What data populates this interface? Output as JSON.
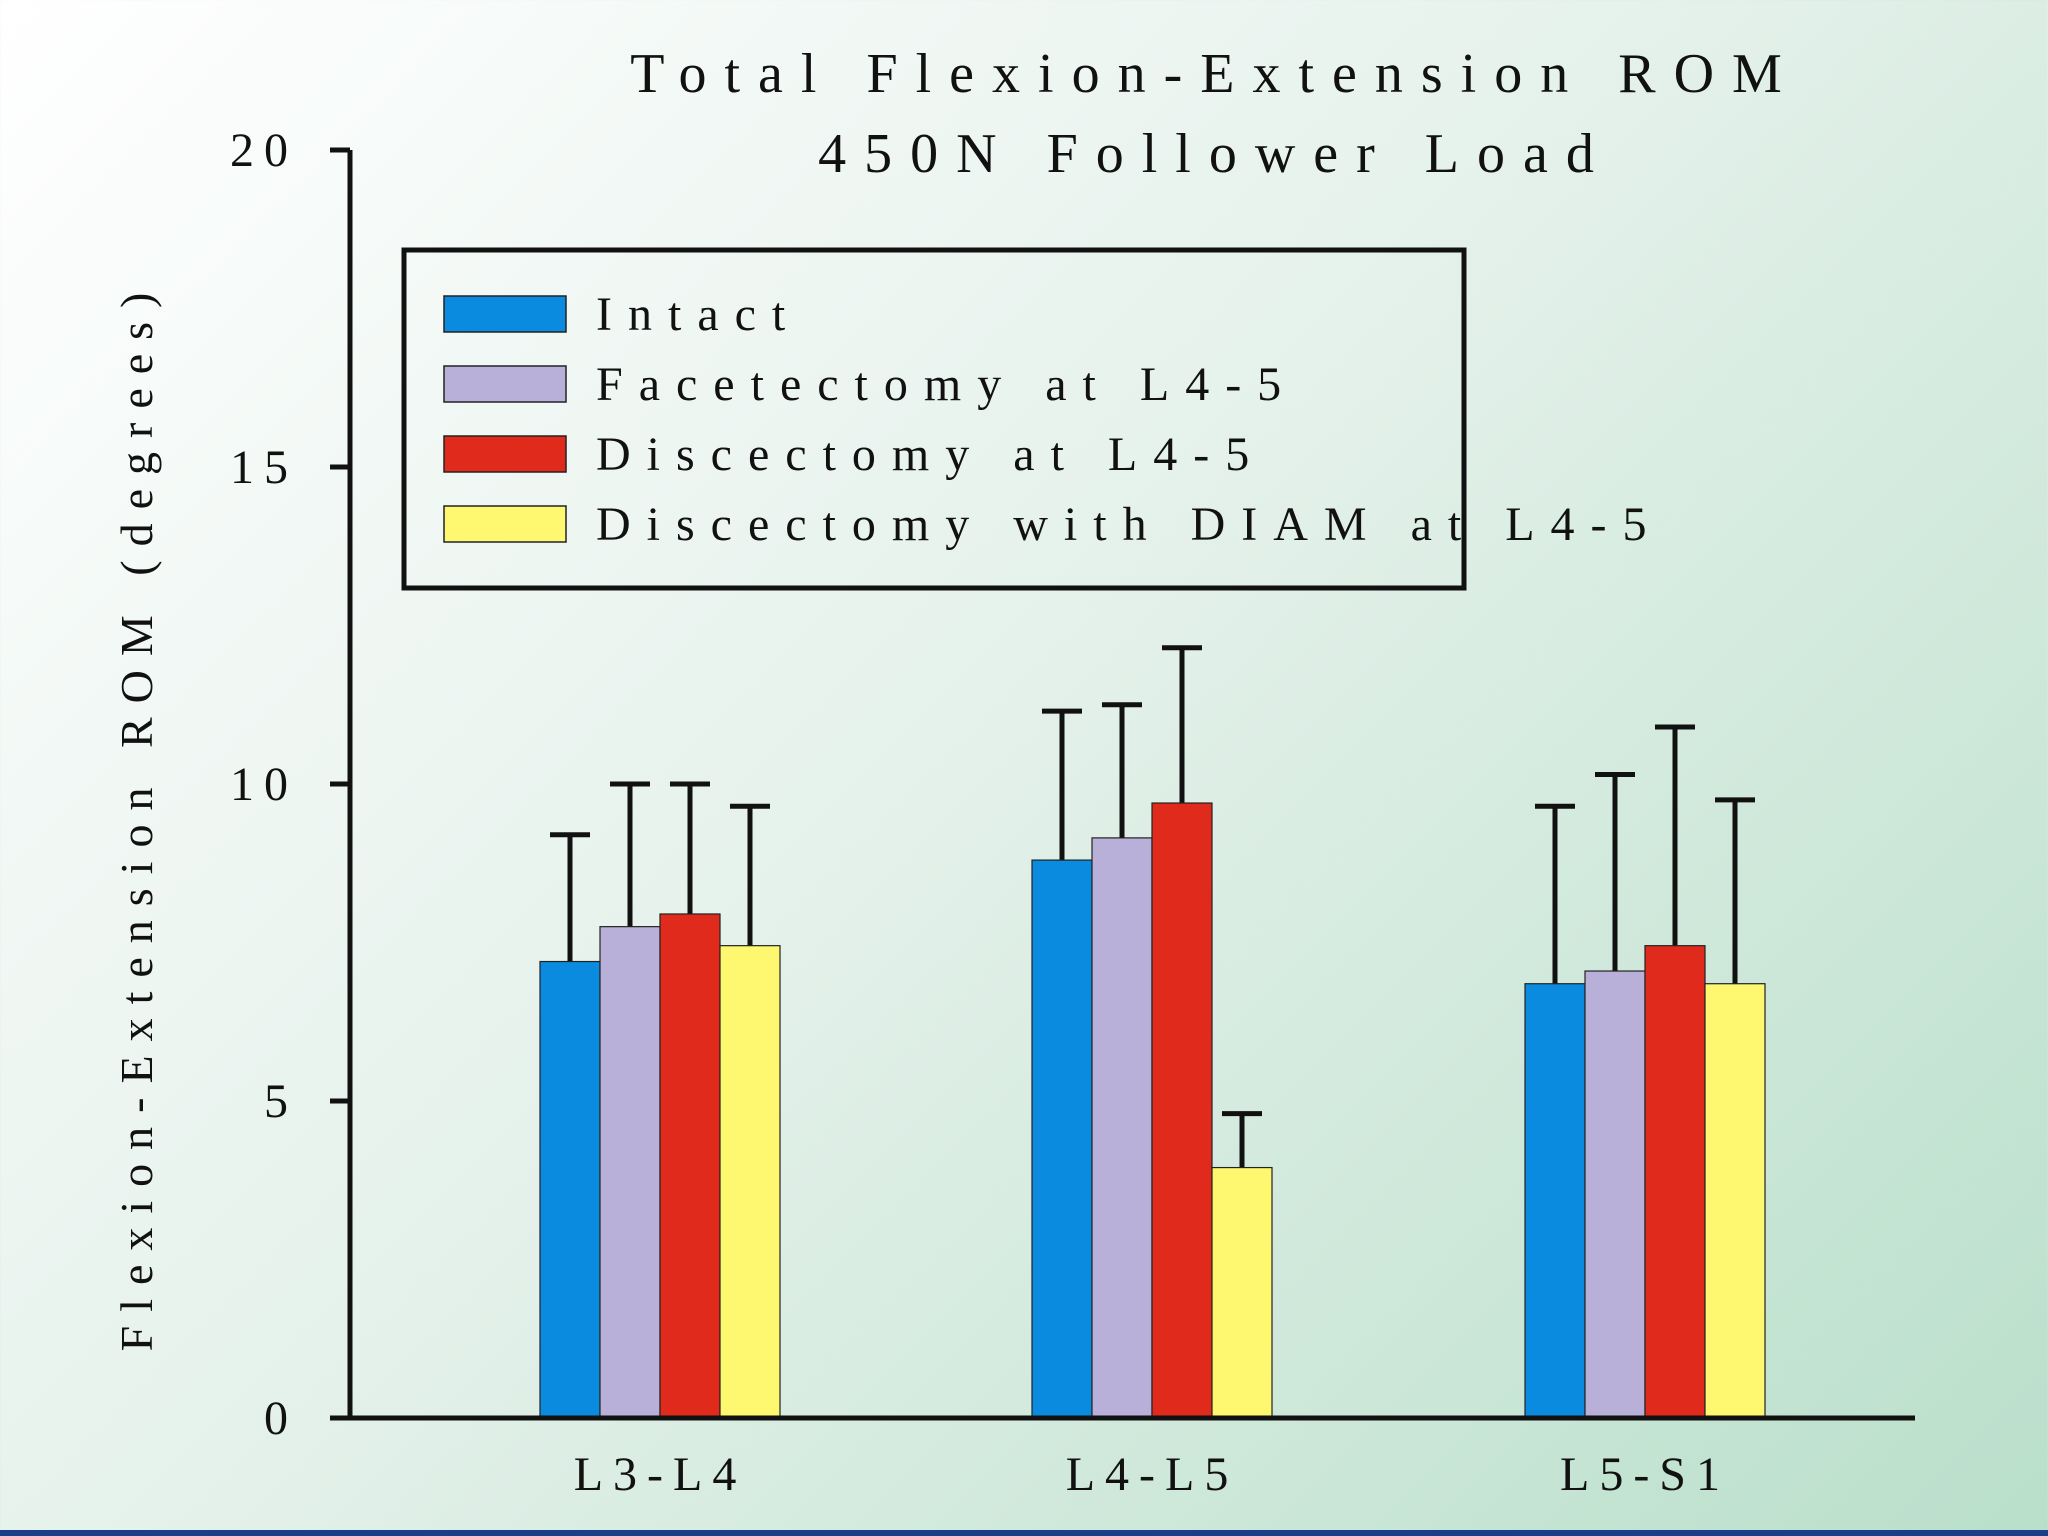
{
  "chart_data": {
    "type": "bar",
    "title": "Total Flexion-Extension ROM",
    "subtitle": "450N Follower Load",
    "ylabel": "Flexion-Extension ROM (degrees)",
    "xlabel": "",
    "ylim": [
      0,
      20
    ],
    "yticks": [
      0,
      5,
      10,
      15,
      20
    ],
    "categories": [
      "L3-L4",
      "L4-L5",
      "L5-S1"
    ],
    "series": [
      {
        "name": "Intact",
        "color": "#0a8be0",
        "values": [
          7.2,
          8.8,
          6.85
        ],
        "errors": [
          2.0,
          2.35,
          2.8
        ]
      },
      {
        "name": "Facetectomy at L4-5",
        "color": "#b8b0d8",
        "values": [
          7.75,
          9.15,
          7.05
        ],
        "errors": [
          2.25,
          2.1,
          3.1
        ]
      },
      {
        "name": "Discectomy at L4-5",
        "color": "#e02a1c",
        "values": [
          7.95,
          9.7,
          7.45
        ],
        "errors": [
          2.05,
          2.45,
          3.45
        ]
      },
      {
        "name": "Discectomy with DIAM at L4-5",
        "color": "#fdf870",
        "values": [
          7.45,
          3.95,
          6.85
        ],
        "errors": [
          2.2,
          0.85,
          2.9
        ]
      }
    ],
    "grid": false,
    "legend_position": "top-left"
  }
}
